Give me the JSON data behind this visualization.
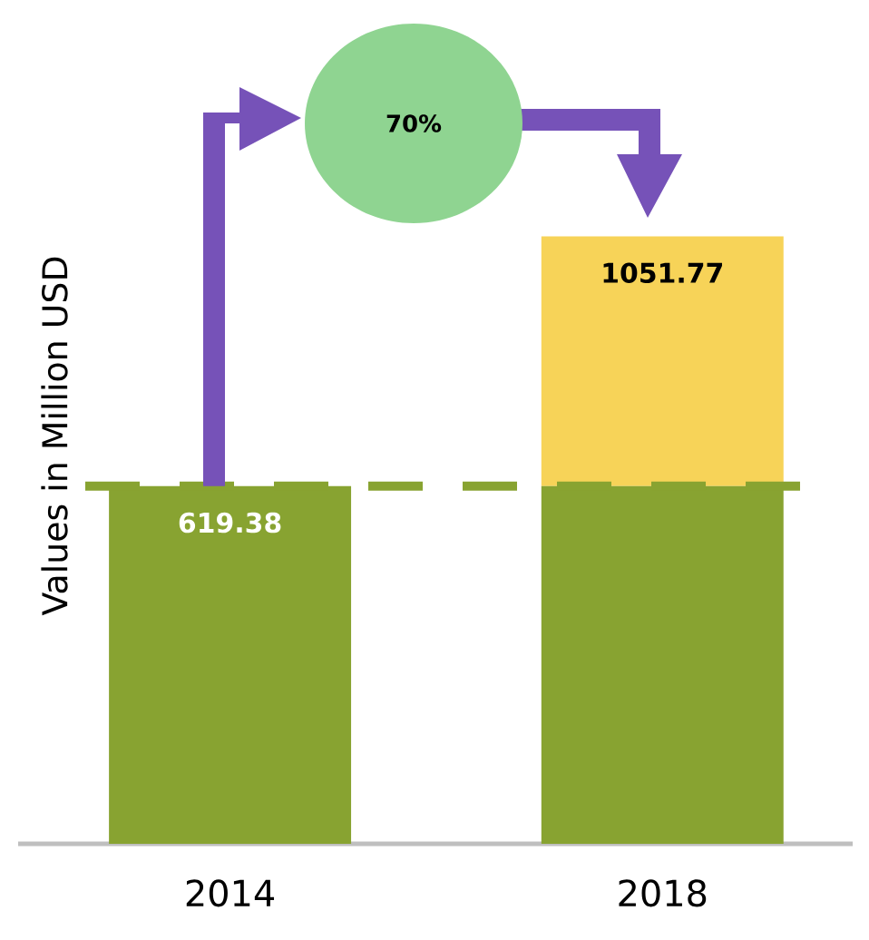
{
  "chart_data": {
    "type": "bar",
    "stacked": true,
    "ylabel": "Values in Million USD",
    "categories": [
      "2014",
      "2018"
    ],
    "series": [
      {
        "color": "#88a331",
        "values": [
          619.38,
          619.38
        ],
        "value_labels": [
          "619.38",
          null
        ]
      },
      {
        "color": "#f7d358",
        "values": [
          null,
          432.39
        ]
      }
    ],
    "totals": [
      null,
      "1051.77"
    ],
    "tick_labels": "x",
    "ref_lines": [
      {
        "axis": "y",
        "value": 619.38,
        "color": "#88a331",
        "line_style": "dashed"
      }
    ],
    "annotations": [
      "70%"
    ]
  }
}
